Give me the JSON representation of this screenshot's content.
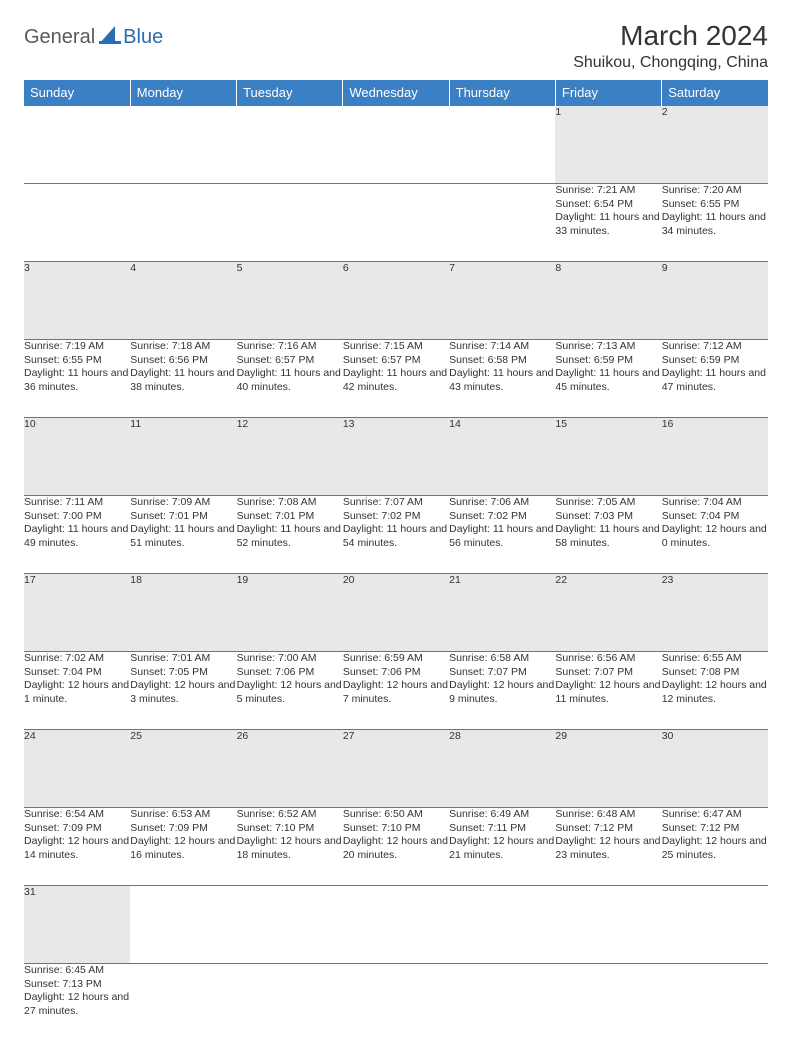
{
  "logo": {
    "part1": "General",
    "part2": "Blue"
  },
  "title": "March 2024",
  "location": "Shuikou, Chongqing, China",
  "colors": {
    "header_bg": "#3b7fc4",
    "header_fg": "#ffffff",
    "num_bg": "#e8e8e8",
    "border": "#3b7fc4",
    "text": "#333333"
  },
  "weekdays": [
    "Sunday",
    "Monday",
    "Tuesday",
    "Wednesday",
    "Thursday",
    "Friday",
    "Saturday"
  ],
  "weeks": [
    [
      null,
      null,
      null,
      null,
      null,
      {
        "n": "1",
        "sr": "7:21 AM",
        "ss": "6:54 PM",
        "dl": "11 hours and 33 minutes."
      },
      {
        "n": "2",
        "sr": "7:20 AM",
        "ss": "6:55 PM",
        "dl": "11 hours and 34 minutes."
      }
    ],
    [
      {
        "n": "3",
        "sr": "7:19 AM",
        "ss": "6:55 PM",
        "dl": "11 hours and 36 minutes."
      },
      {
        "n": "4",
        "sr": "7:18 AM",
        "ss": "6:56 PM",
        "dl": "11 hours and 38 minutes."
      },
      {
        "n": "5",
        "sr": "7:16 AM",
        "ss": "6:57 PM",
        "dl": "11 hours and 40 minutes."
      },
      {
        "n": "6",
        "sr": "7:15 AM",
        "ss": "6:57 PM",
        "dl": "11 hours and 42 minutes."
      },
      {
        "n": "7",
        "sr": "7:14 AM",
        "ss": "6:58 PM",
        "dl": "11 hours and 43 minutes."
      },
      {
        "n": "8",
        "sr": "7:13 AM",
        "ss": "6:59 PM",
        "dl": "11 hours and 45 minutes."
      },
      {
        "n": "9",
        "sr": "7:12 AM",
        "ss": "6:59 PM",
        "dl": "11 hours and 47 minutes."
      }
    ],
    [
      {
        "n": "10",
        "sr": "7:11 AM",
        "ss": "7:00 PM",
        "dl": "11 hours and 49 minutes."
      },
      {
        "n": "11",
        "sr": "7:09 AM",
        "ss": "7:01 PM",
        "dl": "11 hours and 51 minutes."
      },
      {
        "n": "12",
        "sr": "7:08 AM",
        "ss": "7:01 PM",
        "dl": "11 hours and 52 minutes."
      },
      {
        "n": "13",
        "sr": "7:07 AM",
        "ss": "7:02 PM",
        "dl": "11 hours and 54 minutes."
      },
      {
        "n": "14",
        "sr": "7:06 AM",
        "ss": "7:02 PM",
        "dl": "11 hours and 56 minutes."
      },
      {
        "n": "15",
        "sr": "7:05 AM",
        "ss": "7:03 PM",
        "dl": "11 hours and 58 minutes."
      },
      {
        "n": "16",
        "sr": "7:04 AM",
        "ss": "7:04 PM",
        "dl": "12 hours and 0 minutes."
      }
    ],
    [
      {
        "n": "17",
        "sr": "7:02 AM",
        "ss": "7:04 PM",
        "dl": "12 hours and 1 minute."
      },
      {
        "n": "18",
        "sr": "7:01 AM",
        "ss": "7:05 PM",
        "dl": "12 hours and 3 minutes."
      },
      {
        "n": "19",
        "sr": "7:00 AM",
        "ss": "7:06 PM",
        "dl": "12 hours and 5 minutes."
      },
      {
        "n": "20",
        "sr": "6:59 AM",
        "ss": "7:06 PM",
        "dl": "12 hours and 7 minutes."
      },
      {
        "n": "21",
        "sr": "6:58 AM",
        "ss": "7:07 PM",
        "dl": "12 hours and 9 minutes."
      },
      {
        "n": "22",
        "sr": "6:56 AM",
        "ss": "7:07 PM",
        "dl": "12 hours and 11 minutes."
      },
      {
        "n": "23",
        "sr": "6:55 AM",
        "ss": "7:08 PM",
        "dl": "12 hours and 12 minutes."
      }
    ],
    [
      {
        "n": "24",
        "sr": "6:54 AM",
        "ss": "7:09 PM",
        "dl": "12 hours and 14 minutes."
      },
      {
        "n": "25",
        "sr": "6:53 AM",
        "ss": "7:09 PM",
        "dl": "12 hours and 16 minutes."
      },
      {
        "n": "26",
        "sr": "6:52 AM",
        "ss": "7:10 PM",
        "dl": "12 hours and 18 minutes."
      },
      {
        "n": "27",
        "sr": "6:50 AM",
        "ss": "7:10 PM",
        "dl": "12 hours and 20 minutes."
      },
      {
        "n": "28",
        "sr": "6:49 AM",
        "ss": "7:11 PM",
        "dl": "12 hours and 21 minutes."
      },
      {
        "n": "29",
        "sr": "6:48 AM",
        "ss": "7:12 PM",
        "dl": "12 hours and 23 minutes."
      },
      {
        "n": "30",
        "sr": "6:47 AM",
        "ss": "7:12 PM",
        "dl": "12 hours and 25 minutes."
      }
    ],
    [
      {
        "n": "31",
        "sr": "6:45 AM",
        "ss": "7:13 PM",
        "dl": "12 hours and 27 minutes."
      },
      null,
      null,
      null,
      null,
      null,
      null
    ]
  ],
  "labels": {
    "sunrise": "Sunrise: ",
    "sunset": "Sunset: ",
    "daylight": "Daylight: "
  }
}
